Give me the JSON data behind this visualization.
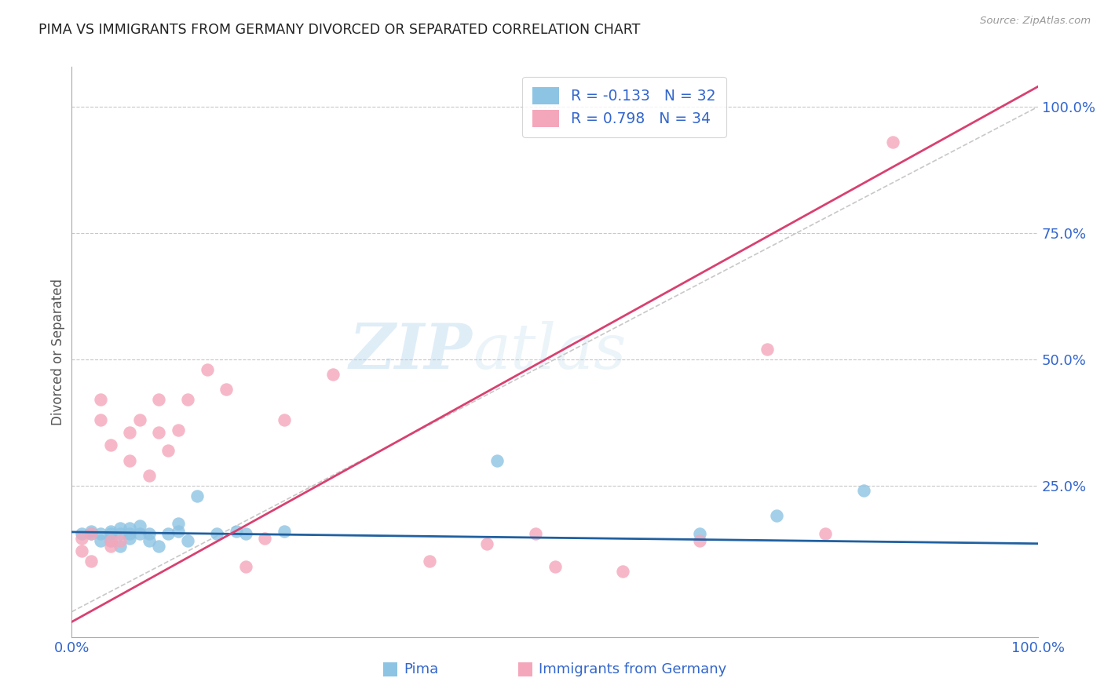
{
  "title": "PIMA VS IMMIGRANTS FROM GERMANY DIVORCED OR SEPARATED CORRELATION CHART",
  "source": "Source: ZipAtlas.com",
  "xlabel_label": "Pima",
  "xlabel2_label": "Immigrants from Germany",
  "ylabel": "Divorced or Separated",
  "watermark_zip": "ZIP",
  "watermark_atlas": "atlas",
  "legend_r1": "R = -0.133",
  "legend_n1": "N = 32",
  "legend_r2": "R = 0.798",
  "legend_n2": "N = 34",
  "xlim": [
    0.0,
    1.0
  ],
  "ylim": [
    -0.05,
    1.08
  ],
  "yticks": [
    0.0,
    0.25,
    0.5,
    0.75,
    1.0
  ],
  "ytick_labels": [
    "",
    "25.0%",
    "50.0%",
    "75.0%",
    "100.0%"
  ],
  "xticks": [
    0.0,
    0.25,
    0.5,
    0.75,
    1.0
  ],
  "xtick_labels": [
    "0.0%",
    "",
    "",
    "",
    "100.0%"
  ],
  "blue_color": "#8dc3e3",
  "pink_color": "#f4a7bb",
  "blue_line_color": "#2060a0",
  "pink_line_color": "#d94070",
  "ref_line_color": "#c8c8c8",
  "grid_color": "#c8c8c8",
  "title_color": "#222222",
  "axis_label_color": "#3366cc",
  "blue_scatter_x": [
    0.01,
    0.02,
    0.02,
    0.03,
    0.03,
    0.04,
    0.04,
    0.04,
    0.05,
    0.05,
    0.05,
    0.06,
    0.06,
    0.06,
    0.07,
    0.07,
    0.08,
    0.08,
    0.09,
    0.1,
    0.11,
    0.11,
    0.12,
    0.13,
    0.15,
    0.17,
    0.18,
    0.22,
    0.44,
    0.65,
    0.73,
    0.82
  ],
  "blue_scatter_y": [
    0.155,
    0.155,
    0.16,
    0.14,
    0.155,
    0.14,
    0.155,
    0.16,
    0.13,
    0.155,
    0.165,
    0.145,
    0.155,
    0.165,
    0.155,
    0.17,
    0.14,
    0.155,
    0.13,
    0.155,
    0.16,
    0.175,
    0.14,
    0.23,
    0.155,
    0.16,
    0.155,
    0.16,
    0.3,
    0.155,
    0.19,
    0.24
  ],
  "pink_scatter_x": [
    0.01,
    0.01,
    0.02,
    0.02,
    0.03,
    0.03,
    0.04,
    0.04,
    0.04,
    0.05,
    0.06,
    0.06,
    0.07,
    0.08,
    0.09,
    0.09,
    0.1,
    0.11,
    0.12,
    0.14,
    0.16,
    0.18,
    0.2,
    0.22,
    0.27,
    0.37,
    0.43,
    0.48,
    0.5,
    0.57,
    0.65,
    0.72,
    0.78,
    0.85
  ],
  "pink_scatter_y": [
    0.145,
    0.12,
    0.1,
    0.155,
    0.38,
    0.42,
    0.13,
    0.14,
    0.33,
    0.14,
    0.3,
    0.355,
    0.38,
    0.27,
    0.355,
    0.42,
    0.32,
    0.36,
    0.42,
    0.48,
    0.44,
    0.09,
    0.145,
    0.38,
    0.47,
    0.1,
    0.135,
    0.155,
    0.09,
    0.08,
    0.14,
    0.52,
    0.155,
    0.93
  ],
  "blue_trend_x": [
    0.0,
    1.0
  ],
  "blue_trend_y": [
    0.158,
    0.135
  ],
  "pink_trend_x": [
    0.0,
    1.0
  ],
  "pink_trend_y": [
    -0.02,
    1.04
  ],
  "ref_line_x": [
    0.0,
    1.0
  ],
  "ref_line_y": [
    0.0,
    1.0
  ],
  "background_color": "#ffffff",
  "plot_bg_color": "#ffffff"
}
